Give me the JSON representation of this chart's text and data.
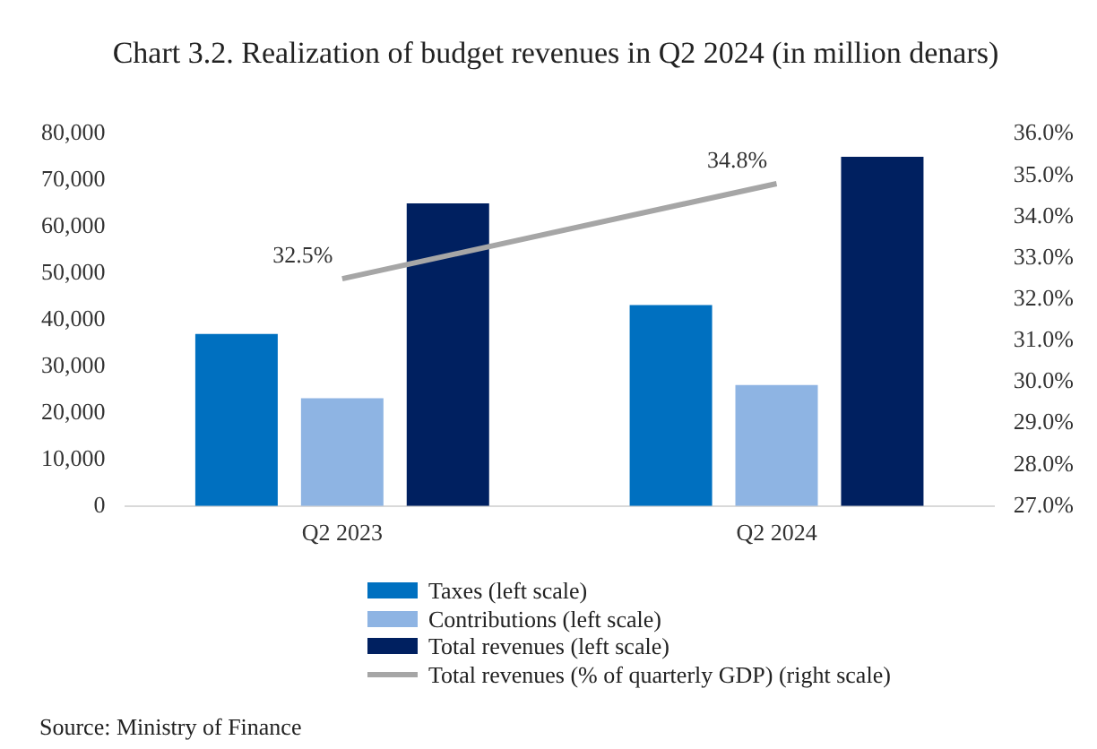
{
  "chart_data": {
    "type": "bar",
    "title": "Chart 3.2. Realization of budget revenues in Q2 2024 (in million denars)",
    "categories": [
      "Q2 2023",
      "Q2 2024"
    ],
    "series": [
      {
        "name": "Taxes (left scale)",
        "color": "#0070c0",
        "values": [
          37000,
          43200
        ]
      },
      {
        "name": "Contributions (left scale)",
        "color": "#8eb4e3",
        "values": [
          23200,
          26000
        ]
      },
      {
        "name": "Total revenues (left scale)",
        "color": "#002060",
        "values": [
          65100,
          75100
        ]
      },
      {
        "name": "Total revenues (% of quarterly GDP) (right scale)",
        "type": "line",
        "axis": "y2",
        "color": "#a6a6a6",
        "values": [
          32.5,
          34.8
        ],
        "value_labels": [
          "32.5%",
          "34.8%"
        ]
      }
    ],
    "ylim": [
      0,
      80000
    ],
    "yticks": [
      {
        "value": 0,
        "label": "0"
      },
      {
        "value": 10000,
        "label": "10,000"
      },
      {
        "value": 20000,
        "label": "20,000"
      },
      {
        "value": 30000,
        "label": "30,000"
      },
      {
        "value": 40000,
        "label": "40,000"
      },
      {
        "value": 50000,
        "label": "50,000"
      },
      {
        "value": 60000,
        "label": "60,000"
      },
      {
        "value": 70000,
        "label": "70,000"
      },
      {
        "value": 80000,
        "label": "80,000"
      }
    ],
    "y2lim": [
      27,
      36
    ],
    "y2ticks": [
      {
        "value": 27,
        "label": "27.0%"
      },
      {
        "value": 28,
        "label": "28.0%"
      },
      {
        "value": 29,
        "label": "29.0%"
      },
      {
        "value": 30,
        "label": "30.0%"
      },
      {
        "value": 31,
        "label": "31.0%"
      },
      {
        "value": 32,
        "label": "32.0%"
      },
      {
        "value": 33,
        "label": "33.0%"
      },
      {
        "value": 34,
        "label": "34.0%"
      },
      {
        "value": 35,
        "label": "35.0%"
      },
      {
        "value": 36,
        "label": "36.0%"
      }
    ],
    "grid": false,
    "legend": "bottom",
    "marker": "none",
    "annotations": [
      "Source: Ministry of Finance"
    ]
  }
}
